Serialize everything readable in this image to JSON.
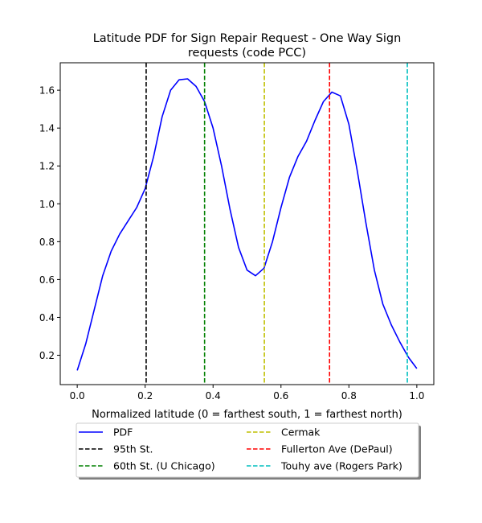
{
  "chart_data": {
    "type": "line",
    "title_line1": "Latitude PDF for Sign Repair Request - One Way Sign",
    "title_line2": "requests (code PCC)",
    "xlabel": "Normalized latitude (0 = farthest south, 1 = farthest north)",
    "ylabel": "",
    "xlim": [
      -0.05,
      1.05
    ],
    "ylim": [
      0.045,
      1.745
    ],
    "x_ticks": [
      0.0,
      0.2,
      0.4,
      0.6,
      0.8,
      1.0
    ],
    "x_tick_labels": [
      "0.0",
      "0.2",
      "0.4",
      "0.6",
      "0.8",
      "1.0"
    ],
    "y_ticks": [
      0.2,
      0.4,
      0.6,
      0.8,
      1.0,
      1.2,
      1.4,
      1.6
    ],
    "y_tick_labels": [
      "0.2",
      "0.4",
      "0.6",
      "0.8",
      "1.0",
      "1.2",
      "1.4",
      "1.6"
    ],
    "grid": false,
    "legend_position": "bottom-center, below axes, two columns",
    "series": [
      {
        "name": "PDF",
        "color": "#0000ff",
        "x": [
          0.0,
          0.025,
          0.05,
          0.075,
          0.1,
          0.125,
          0.15,
          0.175,
          0.2,
          0.225,
          0.25,
          0.275,
          0.3,
          0.325,
          0.35,
          0.375,
          0.4,
          0.425,
          0.45,
          0.475,
          0.5,
          0.525,
          0.55,
          0.575,
          0.6,
          0.625,
          0.65,
          0.675,
          0.7,
          0.725,
          0.75,
          0.775,
          0.8,
          0.825,
          0.85,
          0.875,
          0.9,
          0.925,
          0.95,
          0.975,
          1.0
        ],
        "y": [
          0.12,
          0.26,
          0.44,
          0.62,
          0.75,
          0.84,
          0.91,
          0.98,
          1.08,
          1.25,
          1.46,
          1.6,
          1.655,
          1.66,
          1.62,
          1.54,
          1.4,
          1.2,
          0.97,
          0.77,
          0.65,
          0.62,
          0.66,
          0.8,
          0.98,
          1.14,
          1.25,
          1.33,
          1.44,
          1.54,
          1.59,
          1.57,
          1.42,
          1.17,
          0.9,
          0.65,
          0.47,
          0.36,
          0.27,
          0.19,
          0.13
        ]
      }
    ],
    "vlines": [
      {
        "name": "95th St.",
        "x": 0.203,
        "color": "#000000"
      },
      {
        "name": "60th St. (U Chicago)",
        "x": 0.375,
        "color": "#008000"
      },
      {
        "name": "Cermak",
        "x": 0.551,
        "color": "#bfbf00"
      },
      {
        "name": "Fullerton Ave (DePaul)",
        "x": 0.743,
        "color": "#ff0000"
      },
      {
        "name": "Touhy ave (Rogers Park)",
        "x": 0.972,
        "color": "#00bfbf"
      }
    ]
  }
}
